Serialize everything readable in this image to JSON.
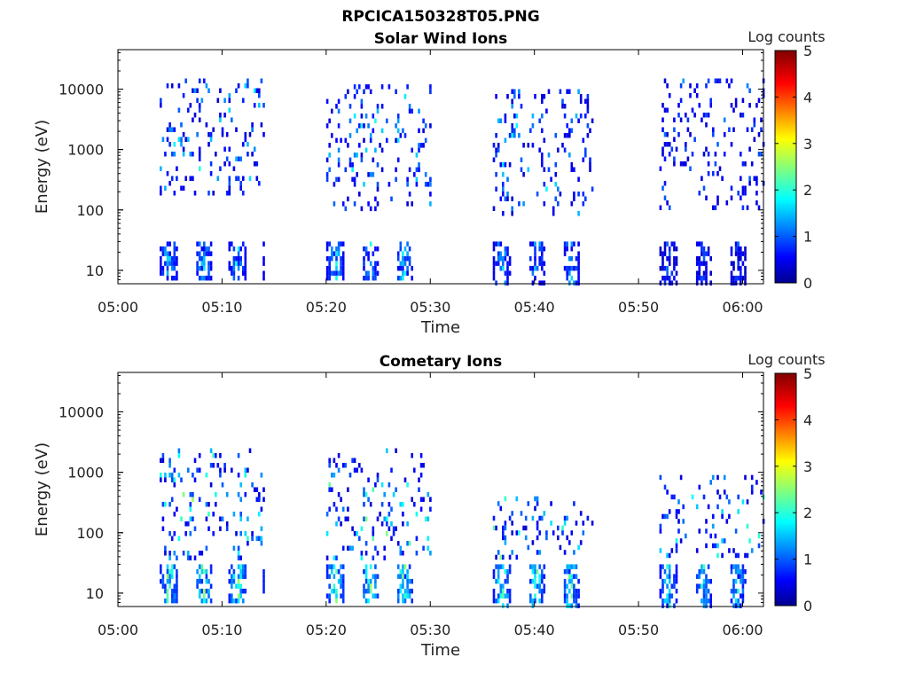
{
  "figure": {
    "title": "RPCICA150328T05.PNG"
  },
  "colorbar": {
    "label": "Log counts",
    "ticks": [
      0,
      1,
      2,
      3,
      4,
      5
    ],
    "range": [
      0,
      5
    ],
    "colormap": "jet"
  },
  "chart_data": [
    {
      "type": "heatmap",
      "title": "Solar Wind Ions",
      "xlabel": "Time",
      "ylabel": "Energy (eV)",
      "xticks": [
        "05:00",
        "05:10",
        "05:20",
        "05:30",
        "05:40",
        "05:50",
        "06:00"
      ],
      "yticks": [
        "10",
        "100",
        "1000",
        "10000"
      ],
      "ytick_values": [
        10,
        100,
        1000,
        10000
      ],
      "xlim_minutes": [
        0,
        62
      ],
      "ylim_eV": [
        6,
        45000
      ],
      "y_scale": "log",
      "zlabel": "Log counts",
      "zlim": [
        0,
        5
      ],
      "bursts": [
        {
          "start_min": 4.0,
          "end_min": 14.0,
          "high_energy_eV": [
            200,
            15000
          ],
          "low_energy_eV": [
            7,
            30
          ],
          "max_log_counts": 2.2
        },
        {
          "start_min": 20.0,
          "end_min": 30.0,
          "high_energy_eV": [
            100,
            12000
          ],
          "low_energy_eV": [
            7,
            30
          ],
          "max_log_counts": 2.2
        },
        {
          "start_min": 36.0,
          "end_min": 45.5,
          "high_energy_eV": [
            80,
            10000
          ],
          "low_energy_eV": [
            6,
            30
          ],
          "max_log_counts": 2.0
        },
        {
          "start_min": 52.0,
          "end_min": 62.0,
          "high_energy_eV": [
            100,
            15000
          ],
          "low_energy_eV": [
            6,
            30
          ],
          "max_log_counts": 1.3
        }
      ]
    },
    {
      "type": "heatmap",
      "title": "Cometary Ions",
      "xlabel": "Time",
      "ylabel": "Energy (eV)",
      "xticks": [
        "05:00",
        "05:10",
        "05:20",
        "05:30",
        "05:40",
        "05:50",
        "06:00"
      ],
      "yticks": [
        "10",
        "100",
        "1000",
        "10000"
      ],
      "ytick_values": [
        10,
        100,
        1000,
        10000
      ],
      "xlim_minutes": [
        0,
        62
      ],
      "ylim_eV": [
        6,
        45000
      ],
      "y_scale": "log",
      "zlabel": "Log counts",
      "zlim": [
        0,
        5
      ],
      "bursts": [
        {
          "start_min": 4.0,
          "end_min": 14.0,
          "high_energy_eV": [
            40,
            2500
          ],
          "low_energy_eV": [
            7,
            30
          ],
          "max_log_counts": 3.1
        },
        {
          "start_min": 20.0,
          "end_min": 30.0,
          "high_energy_eV": [
            40,
            2500
          ],
          "low_energy_eV": [
            7,
            30
          ],
          "max_log_counts": 3.1
        },
        {
          "start_min": 36.0,
          "end_min": 45.5,
          "high_energy_eV": [
            40,
            400
          ],
          "low_energy_eV": [
            6,
            30
          ],
          "max_log_counts": 2.8
        },
        {
          "start_min": 52.0,
          "end_min": 62.0,
          "high_energy_eV": [
            40,
            900
          ],
          "low_energy_eV": [
            6,
            30
          ],
          "max_log_counts": 2.5
        }
      ]
    }
  ]
}
